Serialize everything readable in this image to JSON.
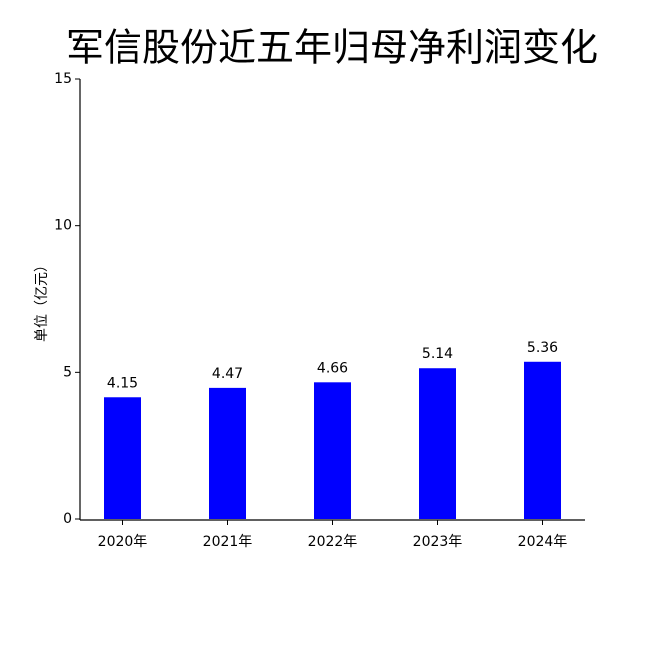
{
  "chart_data": {
    "type": "bar",
    "title": "军信股份近五年归母净利润变化",
    "y_label": "单位（亿元）",
    "categories": [
      "2020年",
      "2021年",
      "2022年",
      "2023年",
      "2024年"
    ],
    "values": [
      4.15,
      4.47,
      4.66,
      5.14,
      5.36
    ],
    "color": "#0000ff",
    "ylim": [
      0,
      15
    ],
    "yticks": [
      0,
      5,
      10,
      15
    ]
  }
}
